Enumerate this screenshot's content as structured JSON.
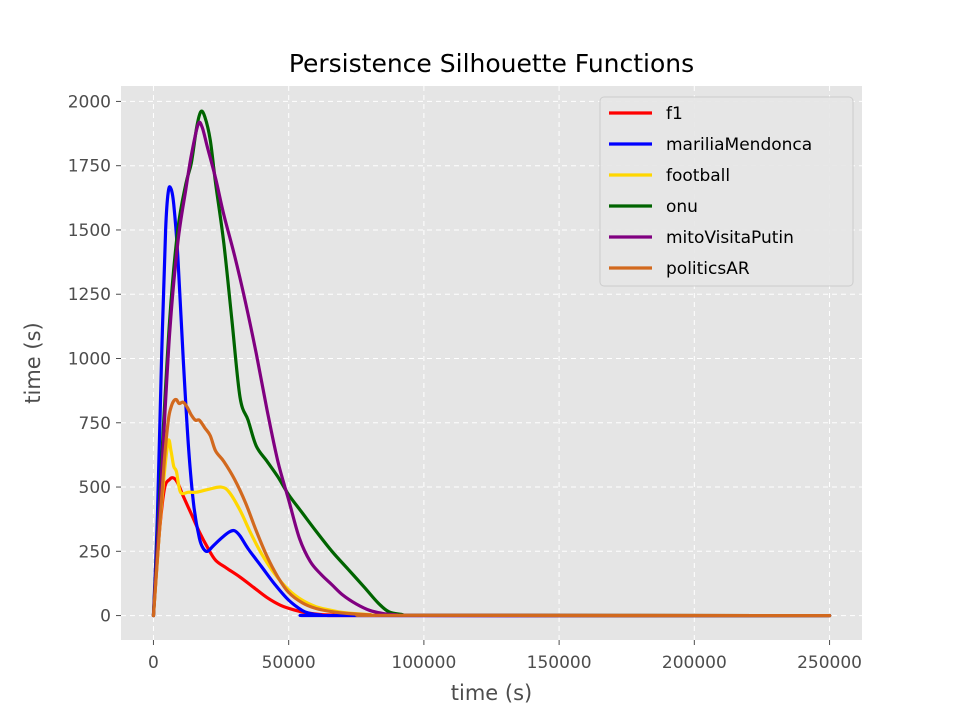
{
  "chart_data": {
    "type": "line",
    "title": "Persistence Silhouette Functions",
    "xlabel": "time (s)",
    "ylabel": "time (s)",
    "xlim": [
      -12000,
      262000
    ],
    "ylim": [
      -95,
      2060
    ],
    "xticks": [
      0,
      50000,
      100000,
      150000,
      200000,
      250000
    ],
    "yticks": [
      0,
      250,
      500,
      750,
      1000,
      1250,
      1500,
      1750,
      2000
    ],
    "grid": true,
    "legend_position": "top-right",
    "series": [
      {
        "name": "f1",
        "color": "#ff0000",
        "x": [
          0,
          2000,
          4000,
          6000,
          7500,
          9000,
          11000,
          14000,
          17000,
          20000,
          23000,
          27000,
          32000,
          37000,
          42000,
          47000,
          52000,
          57000,
          62000,
          70000,
          80000,
          250000
        ],
        "y": [
          0,
          300,
          490,
          530,
          535,
          515,
          465,
          395,
          325,
          265,
          215,
          185,
          150,
          110,
          70,
          40,
          22,
          10,
          4,
          1,
          0,
          0
        ]
      },
      {
        "name": "mariliaMendonca",
        "color": "#0000ff",
        "x": [
          0,
          1500,
          3000,
          4500,
          5500,
          6500,
          7500,
          9000,
          11000,
          13000,
          15000,
          17000,
          18500,
          20000,
          22000,
          25000,
          28000,
          30000,
          32000,
          35000,
          40000,
          45000,
          50000,
          55000,
          58000,
          62000,
          70000,
          250000
        ],
        "y": [
          0,
          400,
          1000,
          1500,
          1650,
          1660,
          1600,
          1400,
          1000,
          650,
          420,
          300,
          260,
          250,
          270,
          300,
          325,
          330,
          310,
          260,
          190,
          120,
          60,
          20,
          8,
          2,
          0,
          0
        ]
      },
      {
        "name": "football",
        "color": "#ffd700",
        "x": [
          0,
          2000,
          4000,
          5500,
          6500,
          7500,
          8500,
          10000,
          13000,
          16000,
          20000,
          25000,
          28000,
          32000,
          36000,
          40000,
          45000,
          50000,
          55000,
          60000,
          65000,
          70000,
          80000,
          90000,
          250000
        ],
        "y": [
          0,
          300,
          550,
          680,
          640,
          580,
          560,
          480,
          480,
          480,
          490,
          500,
          480,
          410,
          320,
          240,
          160,
          100,
          60,
          35,
          22,
          12,
          4,
          1,
          0
        ]
      },
      {
        "name": "onu",
        "color": "#006400",
        "x": [
          0,
          3000,
          6000,
          9000,
          12000,
          14000,
          16000,
          17500,
          19000,
          21000,
          23000,
          26000,
          29000,
          32000,
          35000,
          38000,
          42000,
          46000,
          50000,
          55000,
          60000,
          66000,
          72000,
          78000,
          83000,
          87000,
          92000,
          97000,
          250000
        ],
        "y": [
          0,
          600,
          1150,
          1500,
          1680,
          1760,
          1900,
          1960,
          1940,
          1850,
          1680,
          1450,
          1150,
          850,
          760,
          660,
          600,
          540,
          470,
          400,
          330,
          250,
          180,
          110,
          50,
          15,
          4,
          1,
          0
        ]
      },
      {
        "name": "mitoVisitaPutin",
        "color": "#800080",
        "x": [
          0,
          3000,
          6000,
          9000,
          12000,
          14000,
          16500,
          18000,
          20000,
          23000,
          26000,
          30000,
          34000,
          38000,
          42000,
          46000,
          50000,
          54000,
          58000,
          62000,
          66000,
          70000,
          75000,
          80000,
          85000,
          90000,
          95000,
          250000
        ],
        "y": [
          0,
          550,
          1100,
          1450,
          1660,
          1790,
          1910,
          1900,
          1820,
          1700,
          1560,
          1400,
          1220,
          1020,
          800,
          600,
          450,
          300,
          210,
          160,
          120,
          80,
          45,
          20,
          8,
          3,
          1,
          0
        ]
      },
      {
        "name": "politicsAR",
        "color": "#d2691e",
        "x": [
          0,
          2000,
          4000,
          5500,
          6500,
          7500,
          8500,
          9500,
          11000,
          12500,
          14000,
          15500,
          17000,
          19000,
          21000,
          23000,
          26000,
          30000,
          34000,
          38000,
          42000,
          46000,
          50000,
          55000,
          60000,
          66000,
          72000,
          80000,
          90000,
          250000
        ],
        "y": [
          0,
          300,
          600,
          760,
          810,
          835,
          840,
          825,
          830,
          810,
          780,
          760,
          760,
          730,
          700,
          640,
          600,
          530,
          440,
          330,
          230,
          150,
          90,
          50,
          28,
          15,
          8,
          3,
          1,
          0
        ]
      }
    ]
  }
}
